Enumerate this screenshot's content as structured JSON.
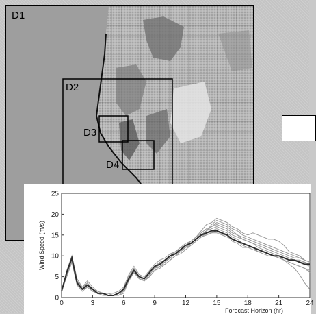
{
  "map": {
    "domains": [
      {
        "id": "D1",
        "label": "D1"
      },
      {
        "id": "D2",
        "label": "D2"
      },
      {
        "id": "D3",
        "label": "D3"
      },
      {
        "id": "D4",
        "label": "D4"
      }
    ]
  },
  "chart_data": {
    "type": "line",
    "xlabel": "Forecast Horizon (hr)",
    "ylabel": "Wind Speed (m/s)",
    "xlim": [
      0,
      24
    ],
    "ylim": [
      0,
      25
    ],
    "xticks": [
      0,
      3,
      6,
      9,
      12,
      15,
      18,
      21,
      24
    ],
    "yticks": [
      0,
      5,
      10,
      15,
      20,
      25
    ],
    "grid": false,
    "x": [
      0,
      0.5,
      1,
      1.5,
      2,
      2.5,
      3,
      3.5,
      4,
      4.5,
      5,
      5.5,
      6,
      6.5,
      7,
      7.5,
      8,
      8.5,
      9,
      9.5,
      10,
      10.5,
      11,
      11.5,
      12,
      12.5,
      13,
      13.5,
      14,
      14.5,
      15,
      15.5,
      16,
      16.5,
      17,
      17.5,
      18,
      18.5,
      19,
      19.5,
      20,
      20.5,
      21,
      21.5,
      22,
      22.5,
      23,
      23.5,
      24
    ],
    "series": [
      {
        "values": [
          1.5,
          6,
          9.5,
          3.5,
          2,
          3.5,
          2,
          1,
          1,
          0.5,
          0.5,
          1,
          2,
          5,
          7,
          5,
          4.5,
          6,
          7.5,
          8,
          9,
          10,
          11,
          11.5,
          12.5,
          13,
          14,
          15,
          15,
          15.5,
          16,
          15,
          15,
          13.5,
          13,
          12,
          12,
          12,
          11,
          11,
          10.5,
          10,
          10,
          9.5,
          9.5,
          9,
          9,
          8.5,
          8
        ]
      },
      {
        "values": [
          1.5,
          5.5,
          9,
          4,
          2.5,
          3,
          2,
          1.5,
          1,
          1,
          0.5,
          1,
          1.5,
          4.5,
          6.5,
          5,
          4,
          5.5,
          7,
          8,
          8.5,
          10,
          10.5,
          11.5,
          12,
          13.5,
          14.5,
          16,
          17.5,
          18,
          19,
          18.5,
          18,
          17,
          16.5,
          15.5,
          15,
          15.5,
          15,
          14.5,
          14,
          14,
          13.5,
          12.5,
          11,
          10.5,
          10,
          9,
          8.5
        ]
      },
      {
        "values": [
          1.5,
          5,
          8.5,
          3,
          2,
          2.5,
          1.5,
          1,
          0.5,
          0.5,
          0.5,
          0.5,
          1,
          4,
          6,
          4.5,
          4,
          5,
          6.5,
          7.5,
          8,
          9,
          10,
          11,
          12,
          13,
          14,
          15,
          16,
          17,
          18,
          17.5,
          17,
          16,
          15,
          14,
          13.5,
          13,
          12,
          11.5,
          11,
          10.5,
          10,
          9,
          8,
          7,
          5.5,
          3.5,
          2
        ]
      },
      {
        "values": [
          1.5,
          6.5,
          10,
          4.5,
          2.5,
          4,
          2.5,
          1.5,
          1,
          1,
          1,
          1.5,
          2.5,
          5.5,
          7.5,
          5.5,
          5,
          6.5,
          8,
          9,
          9.5,
          10.5,
          11,
          12,
          13,
          13.5,
          14.5,
          15.5,
          16.5,
          17,
          17.5,
          17,
          16.5,
          15.5,
          15,
          14.5,
          14,
          13.5,
          13,
          12.5,
          12,
          11.5,
          11,
          10.5,
          10,
          9.5,
          9.5,
          9,
          8.5
        ]
      },
      {
        "values": [
          1.5,
          5.5,
          9,
          3.5,
          2,
          3,
          1.5,
          1,
          0.5,
          0.5,
          0.5,
          1,
          1.5,
          4.5,
          6.5,
          4.5,
          4,
          5.5,
          7,
          7.5,
          8.5,
          9.5,
          10.5,
          11,
          12,
          12.5,
          13.5,
          14.5,
          15.5,
          16,
          16.5,
          16,
          15.5,
          14.5,
          14,
          13,
          12.5,
          12,
          11.5,
          11,
          10.5,
          10,
          9.5,
          9,
          8.5,
          8,
          7.5,
          7,
          6
        ]
      },
      {
        "values": [
          1.5,
          6,
          9.5,
          4,
          2.5,
          3.5,
          2,
          1.5,
          1,
          1,
          0.5,
          1,
          2,
          5,
          7,
          5,
          4.5,
          6,
          7.5,
          8.5,
          9,
          10,
          11,
          12,
          12.5,
          13.5,
          14.5,
          15,
          16,
          16.5,
          17,
          16.5,
          16,
          15,
          14.5,
          14,
          13.5,
          13,
          12.5,
          12,
          11.5,
          11,
          10.5,
          10,
          9.5,
          9,
          8.5,
          8,
          7.5
        ]
      },
      {
        "values": [
          1.5,
          5,
          8.5,
          3,
          1.5,
          2.5,
          1.5,
          1,
          0.5,
          0.5,
          0.5,
          0.5,
          1.5,
          4,
          6,
          4.5,
          4,
          5,
          6.5,
          7,
          8,
          9,
          10,
          10.5,
          11.5,
          12.5,
          13.5,
          14.5,
          15,
          15.5,
          16,
          15.5,
          15,
          14,
          13.5,
          13,
          12.5,
          12,
          11.5,
          11,
          10.5,
          10,
          9.5,
          9,
          8.5,
          8,
          7.5,
          7,
          6.5
        ]
      },
      {
        "values": [
          1.5,
          6,
          9.5,
          4,
          2,
          3.5,
          2,
          1,
          1,
          0.5,
          0.5,
          1,
          2,
          5,
          7,
          5,
          4.5,
          6,
          7.5,
          8,
          9,
          10,
          10.5,
          11.5,
          12.5,
          13,
          14,
          15,
          16,
          17.5,
          18.5,
          18,
          17.5,
          16.5,
          16,
          15,
          14.5,
          14,
          13.5,
          13,
          12.5,
          12,
          11.5,
          11,
          10.5,
          10,
          9.5,
          9,
          8.5
        ]
      },
      {
        "values": [
          1.5,
          5.5,
          9,
          3.5,
          2,
          3,
          2,
          1,
          1,
          0.5,
          0.5,
          1,
          2,
          4.5,
          6.5,
          5,
          4.5,
          5.5,
          7,
          8,
          8.5,
          9.5,
          10.5,
          11.5,
          12,
          13,
          14,
          15,
          15.5,
          15.5,
          15.5,
          15,
          14.5,
          14,
          13.5,
          12.5,
          12,
          11.5,
          11,
          10.5,
          10,
          10,
          9.5,
          9.5,
          9,
          9,
          8.5,
          8.5,
          8
        ]
      },
      {
        "values": [
          1.5,
          6,
          9.5,
          3.5,
          2,
          3,
          2,
          1,
          1,
          0.5,
          0.5,
          1,
          2,
          4.5,
          6.5,
          5,
          4.5,
          6,
          7.5,
          8,
          9,
          10,
          10.5,
          11.5,
          12.5,
          13,
          14,
          15,
          15.5,
          16,
          16,
          15.5,
          15,
          14,
          13.5,
          13,
          12.5,
          12,
          11.5,
          11,
          10.5,
          10,
          10,
          9.5,
          9,
          9,
          8.5,
          8,
          8
        ],
        "emphasis": true
      }
    ],
    "colors": {
      "ensemble": "#9a9a9a",
      "mean": "#2c2c2c"
    }
  }
}
